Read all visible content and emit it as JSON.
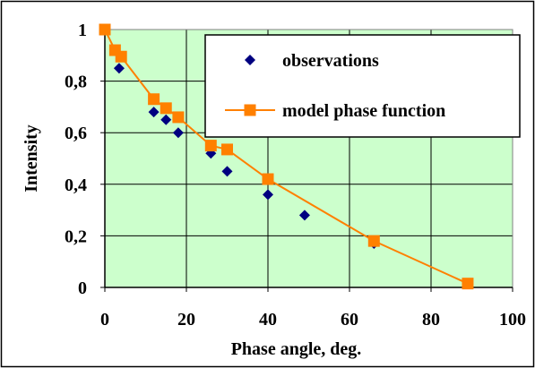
{
  "chart_data": {
    "type": "scatter",
    "title": "",
    "xlabel": "Phase angle, deg.",
    "ylabel": "Intensity",
    "xlim": [
      0,
      100
    ],
    "ylim": [
      0,
      1
    ],
    "x_ticks": [
      "0",
      "20",
      "40",
      "60",
      "80",
      "100"
    ],
    "y_ticks": [
      "0",
      "0,2",
      "0,4",
      "0,6",
      "0,8",
      "1"
    ],
    "grid": true,
    "legend_position": "top-right",
    "plot_background": "#ccffcc",
    "series": [
      {
        "name": "observations",
        "kind": "scatter",
        "marker": "diamond",
        "color": "#000080",
        "x": [
          0,
          2.5,
          3.5,
          12,
          15,
          18,
          26,
          30,
          40,
          49,
          66
        ],
        "y": [
          1,
          0.92,
          0.85,
          0.68,
          0.65,
          0.6,
          0.52,
          0.45,
          0.36,
          0.28,
          0.17
        ]
      },
      {
        "name": "model phase function",
        "kind": "line",
        "marker": "square",
        "color": "#ff8000",
        "x": [
          0,
          2.5,
          4,
          12,
          15,
          18,
          26,
          30,
          40,
          66,
          89
        ],
        "y": [
          1,
          0.92,
          0.895,
          0.73,
          0.695,
          0.66,
          0.55,
          0.535,
          0.42,
          0.18,
          0.015
        ]
      }
    ]
  }
}
